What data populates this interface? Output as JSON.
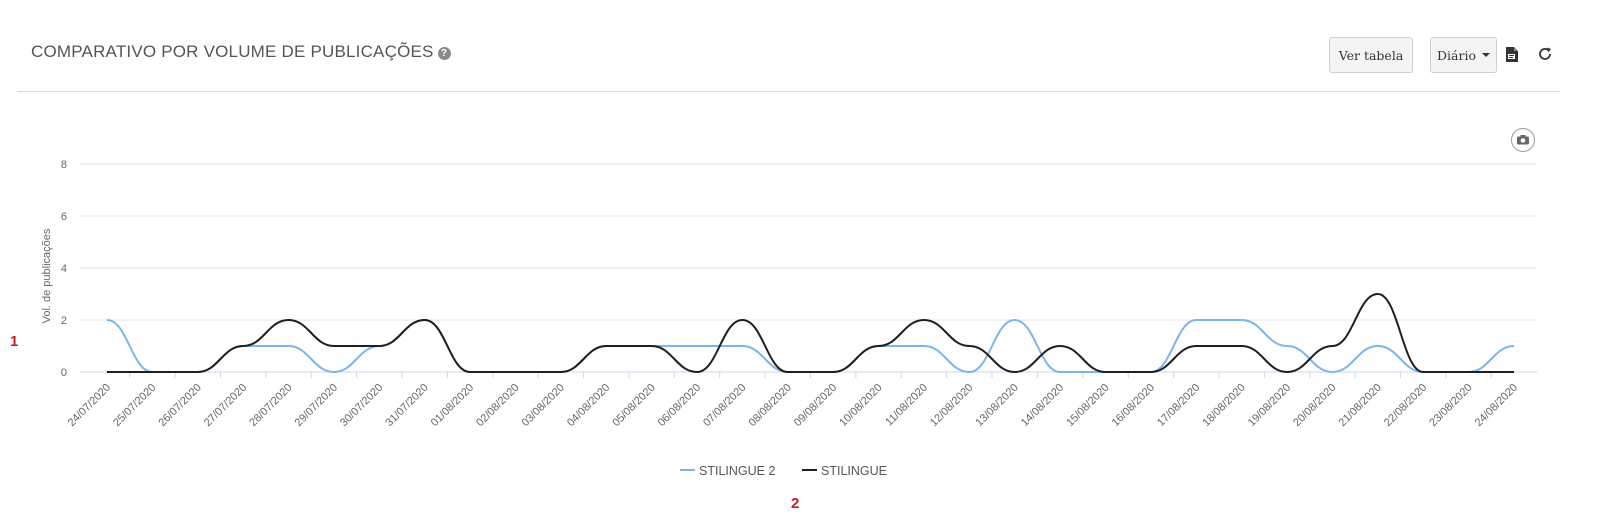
{
  "header": {
    "title": "COMPARATIVO POR VOLUME DE PUBLICAÇÕES",
    "help_icon": "question-circle-icon",
    "table_button_label": "Ver tabela",
    "period_button_label": "Diário",
    "pdf_icon": "pdf-icon",
    "refresh_icon": "refresh-icon",
    "camera_icon": "camera-icon"
  },
  "markers": {
    "first": "1",
    "second": "2"
  },
  "chart_data": {
    "type": "line",
    "title": "",
    "xlabel": "",
    "ylabel": "Vol. de publicações",
    "ylim": [
      0,
      8
    ],
    "yticks": [
      0,
      2,
      4,
      6,
      8
    ],
    "grid": true,
    "legend_position": "bottom-center",
    "categories": [
      "24/07/2020",
      "25/07/2020",
      "26/07/2020",
      "27/07/2020",
      "28/07/2020",
      "29/07/2020",
      "30/07/2020",
      "31/07/2020",
      "01/08/2020",
      "02/08/2020",
      "03/08/2020",
      "04/08/2020",
      "05/08/2020",
      "06/08/2020",
      "07/08/2020",
      "08/08/2020",
      "09/08/2020",
      "10/08/2020",
      "11/08/2020",
      "12/08/2020",
      "13/08/2020",
      "14/08/2020",
      "15/08/2020",
      "16/08/2020",
      "17/08/2020",
      "18/08/2020",
      "19/08/2020",
      "20/08/2020",
      "21/08/2020",
      "22/08/2020",
      "23/08/2020",
      "24/08/2020"
    ],
    "series": [
      {
        "name": "STILINGUE 2",
        "color": "#7cb5ec",
        "values": [
          2,
          0,
          0,
          1,
          1,
          0,
          1,
          2,
          0,
          0,
          0,
          1,
          1,
          1,
          1,
          0,
          0,
          1,
          1,
          0,
          2,
          0,
          0,
          0,
          2,
          2,
          1,
          0,
          1,
          0,
          0,
          1
        ]
      },
      {
        "name": "STILINGUE",
        "color": "#1f1f1f",
        "values": [
          0,
          0,
          0,
          1,
          2,
          1,
          1,
          2,
          0,
          0,
          0,
          1,
          1,
          0,
          2,
          0,
          0,
          1,
          2,
          1,
          0,
          1,
          0,
          0,
          1,
          1,
          0,
          1,
          3,
          0,
          0,
          0
        ]
      }
    ]
  }
}
